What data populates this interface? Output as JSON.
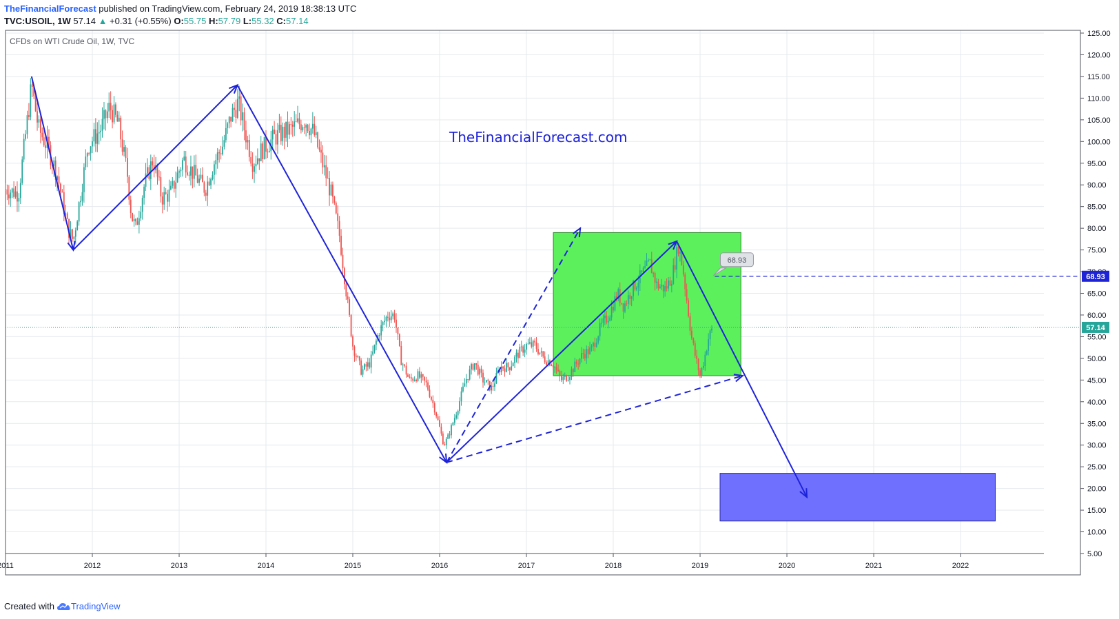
{
  "header": {
    "author": "TheFinancialForecast",
    "published": "published on TradingView.com, February 24, 2019 18:38:13 UTC",
    "symbol": "TVC:USOIL, 1W",
    "price": "57.14",
    "change": "+0.31 (+0.55%)",
    "o_label": "O:",
    "o_value": "55.75",
    "h_label": "H:",
    "h_value": "57.79",
    "l_label": "L:",
    "l_value": "55.32",
    "c_label": "C:",
    "c_value": "57.14"
  },
  "footer": {
    "created_with": "Created with",
    "brand": "TradingView"
  },
  "colors": {
    "up": "#26a69a",
    "down": "#ef5350",
    "drawing": "#1e23d8",
    "green_zone": "#5cf05c",
    "blue_zone": "#7070ff",
    "grid": "#e6e9ee"
  },
  "chart_data": {
    "type": "candlestick",
    "title": "CFDs on WTI Crude Oil, 1W, TVC",
    "watermark": "TheFinancialForecast.com",
    "x_axis": {
      "tick_labels": [
        "2011",
        "2012",
        "2013",
        "2014",
        "2015",
        "2016",
        "2017",
        "2018",
        "2019",
        "2020",
        "2021",
        "2022"
      ],
      "range": [
        2011.0,
        2022.96
      ]
    },
    "y_axis": {
      "tick_labels": [
        "125.00",
        "120.00",
        "115.00",
        "110.00",
        "105.00",
        "100.00",
        "95.00",
        "90.00",
        "85.00",
        "80.00",
        "75.00",
        "70.00",
        "65.00",
        "60.00",
        "55.00",
        "50.00",
        "45.00",
        "40.00",
        "35.00",
        "30.00",
        "25.00",
        "20.00",
        "15.00",
        "10.00",
        "5.00"
      ],
      "range": [
        5,
        125
      ],
      "position": "right"
    },
    "last_price": {
      "value": 57.14,
      "label": "57.14"
    },
    "annotation": {
      "value": 68.93,
      "label": "68.93"
    },
    "approx_weekly_close_path": [
      [
        2011.0,
        89
      ],
      [
        2011.15,
        88
      ],
      [
        2011.3,
        113
      ],
      [
        2011.38,
        103
      ],
      [
        2011.5,
        98
      ],
      [
        2011.6,
        92
      ],
      [
        2011.72,
        80
      ],
      [
        2011.78,
        77
      ],
      [
        2011.85,
        86
      ],
      [
        2011.95,
        99
      ],
      [
        2012.1,
        103
      ],
      [
        2012.2,
        108
      ],
      [
        2012.3,
        104
      ],
      [
        2012.4,
        93
      ],
      [
        2012.45,
        83
      ],
      [
        2012.5,
        80
      ],
      [
        2012.6,
        90
      ],
      [
        2012.7,
        96
      ],
      [
        2012.8,
        87
      ],
      [
        2012.9,
        88
      ],
      [
        2013.05,
        96
      ],
      [
        2013.15,
        93
      ],
      [
        2013.3,
        89
      ],
      [
        2013.4,
        95
      ],
      [
        2013.5,
        99
      ],
      [
        2013.6,
        106
      ],
      [
        2013.68,
        109
      ],
      [
        2013.75,
        103
      ],
      [
        2013.85,
        95
      ],
      [
        2013.95,
        98
      ],
      [
        2014.1,
        101
      ],
      [
        2014.3,
        103
      ],
      [
        2014.45,
        105
      ],
      [
        2014.55,
        102
      ],
      [
        2014.65,
        95
      ],
      [
        2014.75,
        88
      ],
      [
        2014.85,
        78
      ],
      [
        2014.92,
        66
      ],
      [
        2015.0,
        53
      ],
      [
        2015.1,
        47
      ],
      [
        2015.2,
        49
      ],
      [
        2015.3,
        56
      ],
      [
        2015.4,
        60
      ],
      [
        2015.48,
        60
      ],
      [
        2015.55,
        50
      ],
      [
        2015.65,
        45
      ],
      [
        2015.75,
        46
      ],
      [
        2015.85,
        44
      ],
      [
        2015.95,
        38
      ],
      [
        2016.05,
        30
      ],
      [
        2016.1,
        32
      ],
      [
        2016.2,
        38
      ],
      [
        2016.3,
        45
      ],
      [
        2016.4,
        49
      ],
      [
        2016.5,
        45
      ],
      [
        2016.6,
        43
      ],
      [
        2016.7,
        48
      ],
      [
        2016.8,
        48
      ],
      [
        2016.9,
        51
      ],
      [
        2017.0,
        53
      ],
      [
        2017.1,
        53
      ],
      [
        2017.2,
        50
      ],
      [
        2017.3,
        49
      ],
      [
        2017.4,
        45
      ],
      [
        2017.48,
        46
      ],
      [
        2017.55,
        48
      ],
      [
        2017.65,
        51
      ],
      [
        2017.75,
        52
      ],
      [
        2017.85,
        57
      ],
      [
        2017.95,
        60
      ],
      [
        2018.05,
        65
      ],
      [
        2018.12,
        62
      ],
      [
        2018.22,
        66
      ],
      [
        2018.32,
        69
      ],
      [
        2018.42,
        72
      ],
      [
        2018.5,
        67
      ],
      [
        2018.6,
        66
      ],
      [
        2018.68,
        69
      ],
      [
        2018.72,
        73
      ],
      [
        2018.75,
        76
      ],
      [
        2018.8,
        71
      ],
      [
        2018.85,
        63
      ],
      [
        2018.9,
        55
      ],
      [
        2018.95,
        50
      ],
      [
        2019.0,
        46
      ],
      [
        2019.05,
        50
      ],
      [
        2019.1,
        55
      ],
      [
        2019.15,
        57.14
      ]
    ],
    "drawings": {
      "solid_arrows": [
        [
          [
            2011.3,
            115
          ],
          [
            2011.78,
            75
          ]
        ],
        [
          [
            2011.78,
            75
          ],
          [
            2013.67,
            113
          ]
        ],
        [
          [
            2013.67,
            113
          ],
          [
            2016.08,
            26
          ]
        ],
        [
          [
            2016.08,
            26
          ],
          [
            2018.73,
            77
          ]
        ],
        [
          [
            2018.73,
            77
          ],
          [
            2020.23,
            18
          ]
        ]
      ],
      "dashed_arrows": [
        [
          [
            2016.08,
            26
          ],
          [
            2017.62,
            80
          ]
        ],
        [
          [
            2016.08,
            26
          ],
          [
            2019.49,
            46
          ]
        ]
      ],
      "horizontal_line": 68.93,
      "green_zone": {
        "x": [
          2017.31,
          2019.47
        ],
        "y": [
          46,
          79
        ]
      },
      "blue_zone": {
        "x": [
          2019.23,
          2022.4
        ],
        "y": [
          12.5,
          23.5
        ]
      }
    }
  }
}
